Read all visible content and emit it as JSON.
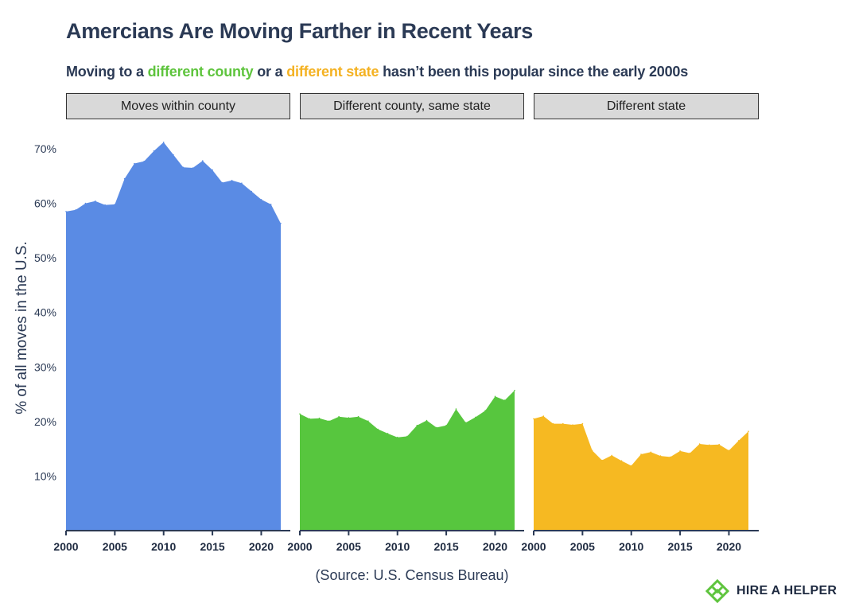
{
  "title": "Amercians Are Moving Farther in Recent Years",
  "subtitle": {
    "part1": "Moving to a ",
    "highlight1": "different county",
    "part2": " or a ",
    "highlight2": "different state",
    "part3": " hasn’t been this popular since the early 2000s"
  },
  "source": "(Source: U.S. Census Bureau)",
  "brand": {
    "name": "HIRE A HELPER",
    "icon": "hire-a-helper-logo-icon"
  },
  "colors": {
    "within_county": "#5a8be4",
    "different_county": "#57c63e",
    "different_state": "#f6b922",
    "text": "#2b3a55"
  },
  "chart_data": {
    "type": "area",
    "facets": [
      "Moves within county",
      "Different county, same state",
      "Different state"
    ],
    "ylabel": "% of all moves in the U.S.",
    "ylim": [
      0,
      70
    ],
    "yticks": [
      10,
      20,
      30,
      40,
      50,
      60,
      70
    ],
    "ytick_labels": [
      "10%",
      "20%",
      "30%",
      "40%",
      "50%",
      "60%",
      "70%"
    ],
    "xlim": [
      2000,
      2022
    ],
    "xticks": [
      2000,
      2005,
      2010,
      2015,
      2020
    ],
    "x": [
      2000,
      2001,
      2002,
      2003,
      2004,
      2005,
      2006,
      2007,
      2008,
      2009,
      2010,
      2011,
      2012,
      2013,
      2014,
      2015,
      2016,
      2017,
      2018,
      2019,
      2020,
      2021,
      2022
    ],
    "series": [
      {
        "name": "Moves within county",
        "values": [
          58.5,
          58.8,
          60.0,
          60.4,
          59.7,
          59.8,
          64.5,
          67.3,
          67.7,
          69.6,
          71.2,
          68.9,
          66.6,
          66.5,
          67.8,
          66.1,
          63.8,
          64.2,
          63.7,
          62.2,
          60.7,
          59.8,
          56.3
        ]
      },
      {
        "name": "Different county, same state",
        "values": [
          21.4,
          20.5,
          20.6,
          20.1,
          20.9,
          20.7,
          20.9,
          20.1,
          18.6,
          17.8,
          17.1,
          17.3,
          19.3,
          20.2,
          18.9,
          19.3,
          22.3,
          19.8,
          20.8,
          22.0,
          24.6,
          23.9,
          25.7
        ]
      },
      {
        "name": "Different state",
        "values": [
          20.5,
          21.0,
          19.6,
          19.6,
          19.4,
          19.6,
          14.7,
          12.9,
          13.8,
          12.8,
          11.9,
          14.0,
          14.4,
          13.7,
          13.5,
          14.6,
          14.2,
          15.9,
          15.7,
          15.8,
          14.7,
          16.5,
          18.2
        ]
      }
    ]
  }
}
